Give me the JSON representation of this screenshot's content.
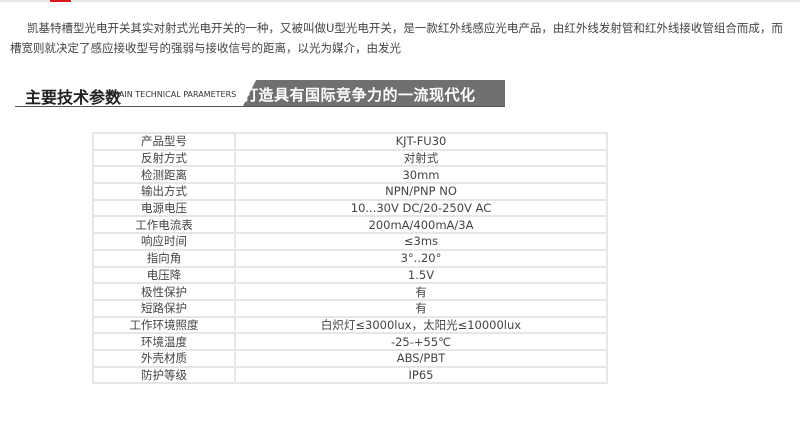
{
  "intro": "凯基特槽型光电开关其实对射式光电开关的一种，又被叫做U型光电开关，是一款红外线感应光电产品，由红外线发射管和红外线接收管组合而成，而槽宽则就决定了感应接收型号的强弱与接收信号的距离，以光为媒介，由发光",
  "section": {
    "title": "主要技术参数",
    "subtitle": "MAIN TECHNICAL PARAMETERS",
    "banner": "打造具有国际竞争力的一流现代化传感器企业"
  },
  "colors": {
    "accent": "#d9161c",
    "banner": "#707070"
  },
  "params": [
    {
      "k": "产品型号",
      "v": "KJT-FU30"
    },
    {
      "k": "反射方式",
      "v": "对射式"
    },
    {
      "k": "检测距离",
      "v": "30mm"
    },
    {
      "k": "输出方式",
      "v": "NPN/PNP NO"
    },
    {
      "k": "电源电压",
      "v": "10...30V DC/20-250V AC"
    },
    {
      "k": "工作电流表",
      "v": "200mA/400mA/3A"
    },
    {
      "k": "响应时间",
      "v": "≤3ms"
    },
    {
      "k": "指向角",
      "v": "3°..20°"
    },
    {
      "k": "电压降",
      "v": "1.5V"
    },
    {
      "k": "极性保护",
      "v": "有"
    },
    {
      "k": "短路保护",
      "v": "有"
    },
    {
      "k": "工作环境照度",
      "v": "白炽灯≤3000lux，太阳光≤10000lux"
    },
    {
      "k": "环境温度",
      "v": "-25-+55℃"
    },
    {
      "k": "外壳材质",
      "v": "ABS/PBT"
    },
    {
      "k": "防护等级",
      "v": "IP65"
    }
  ]
}
